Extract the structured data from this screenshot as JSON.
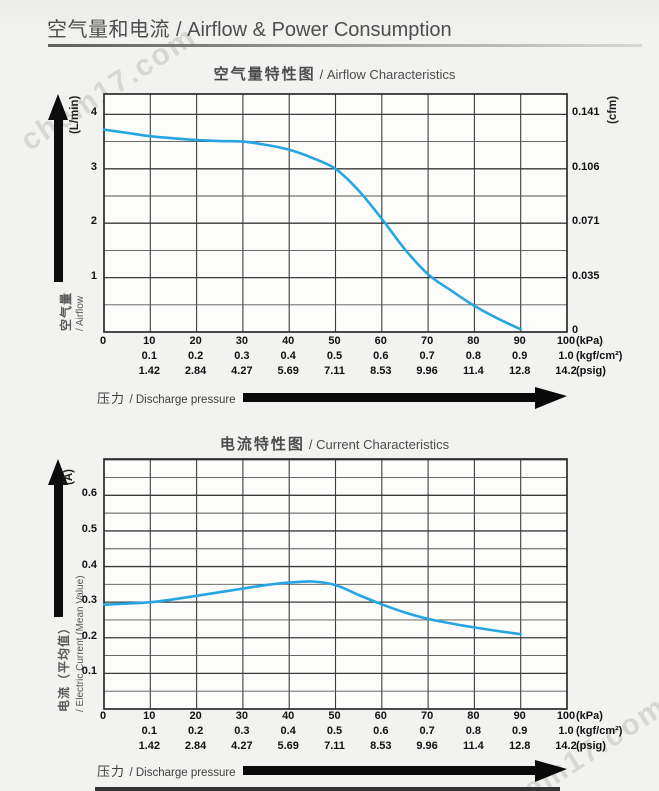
{
  "header": {
    "title_zh": "空气量和电流",
    "title_en": "/ Airflow & Power Consumption",
    "watermark": "chem17.com"
  },
  "pressure_axis": {
    "label_zh": "压力",
    "label_en": "/ Discharge pressure",
    "xlim": [
      0,
      100
    ],
    "rows": [
      {
        "unit": "(kPa)",
        "ticks": [
          {
            "x": 0,
            "label": "0"
          },
          {
            "x": 10,
            "label": "10"
          },
          {
            "x": 20,
            "label": "20"
          },
          {
            "x": 30,
            "label": "30"
          },
          {
            "x": 40,
            "label": "40"
          },
          {
            "x": 50,
            "label": "50"
          },
          {
            "x": 60,
            "label": "60"
          },
          {
            "x": 70,
            "label": "70"
          },
          {
            "x": 80,
            "label": "80"
          },
          {
            "x": 90,
            "label": "90"
          },
          {
            "x": 100,
            "label": "100"
          }
        ]
      },
      {
        "unit": "(kgf/cm²)",
        "ticks": [
          {
            "x": 10,
            "label": "0.1"
          },
          {
            "x": 20,
            "label": "0.2"
          },
          {
            "x": 30,
            "label": "0.3"
          },
          {
            "x": 40,
            "label": "0.4"
          },
          {
            "x": 50,
            "label": "0.5"
          },
          {
            "x": 60,
            "label": "0.6"
          },
          {
            "x": 70,
            "label": "0.7"
          },
          {
            "x": 80,
            "label": "0.8"
          },
          {
            "x": 90,
            "label": "0.9"
          },
          {
            "x": 100,
            "label": "1.0"
          }
        ]
      },
      {
        "unit": "(psig)",
        "ticks": [
          {
            "x": 10,
            "label": "1.42"
          },
          {
            "x": 20,
            "label": "2.84"
          },
          {
            "x": 30,
            "label": "4.27"
          },
          {
            "x": 40,
            "label": "5.69"
          },
          {
            "x": 50,
            "label": "7.11"
          },
          {
            "x": 60,
            "label": "8.53"
          },
          {
            "x": 70,
            "label": "9.96"
          },
          {
            "x": 80,
            "label": "11.4"
          },
          {
            "x": 90,
            "label": "12.8"
          },
          {
            "x": 100,
            "label": "14.2"
          }
        ]
      }
    ]
  },
  "chart_data": [
    {
      "type": "line",
      "title_zh": "空气量特性图",
      "title_en": "/ Airflow Characteristics",
      "xlabel_zh": "压力",
      "xlabel_en": "Discharge pressure",
      "xlim": [
        0,
        100
      ],
      "ylim": [
        0,
        4.375
      ],
      "grid": {
        "minor": 0.5,
        "major": 1
      },
      "y_left": {
        "unit": "(L/min)",
        "ticks": [
          {
            "value": 4,
            "label": "4"
          },
          {
            "value": 3,
            "label": "3"
          },
          {
            "value": 2,
            "label": "2"
          },
          {
            "value": 1,
            "label": "1"
          }
        ]
      },
      "y_right": {
        "unit": "(cfm)",
        "ticks": [
          {
            "value": 4,
            "label": "0.141"
          },
          {
            "value": 3,
            "label": "0.106"
          },
          {
            "value": 2,
            "label": "0.071"
          },
          {
            "value": 1,
            "label": "0.035"
          },
          {
            "value": 0,
            "label": "0"
          }
        ]
      },
      "axis_arrow_zh": "空气量",
      "axis_arrow_en": "/ Airflow",
      "series": [
        {
          "name": "airflow",
          "color": "#25a5e2",
          "points": [
            [
              0,
              3.72
            ],
            [
              5,
              3.66
            ],
            [
              10,
              3.6
            ],
            [
              15,
              3.56
            ],
            [
              20,
              3.53
            ],
            [
              25,
              3.51
            ],
            [
              30,
              3.5
            ],
            [
              35,
              3.44
            ],
            [
              40,
              3.35
            ],
            [
              45,
              3.2
            ],
            [
              50,
              3.0
            ],
            [
              55,
              2.6
            ],
            [
              60,
              2.08
            ],
            [
              65,
              1.52
            ],
            [
              70,
              1.06
            ],
            [
              75,
              0.76
            ],
            [
              80,
              0.48
            ],
            [
              85,
              0.25
            ],
            [
              90,
              0.05
            ]
          ]
        }
      ]
    },
    {
      "type": "line",
      "title_zh": "电流特性图",
      "title_en": "/ Current Characteristics",
      "xlabel_zh": "压力",
      "xlabel_en": "Discharge pressure",
      "xlim": [
        0,
        100
      ],
      "ylim": [
        0,
        0.702
      ],
      "grid": {
        "minor": 0.05,
        "major": 0.1
      },
      "y_left": {
        "unit": "(A)",
        "ticks": [
          {
            "value": 0.6,
            "label": "0.6"
          },
          {
            "value": 0.5,
            "label": "0.5"
          },
          {
            "value": 0.4,
            "label": "0.4"
          },
          {
            "value": 0.3,
            "label": "0.3"
          },
          {
            "value": 0.2,
            "label": "0.2"
          },
          {
            "value": 0.1,
            "label": "0.1"
          }
        ]
      },
      "y_right": {
        "unit": "",
        "ticks": []
      },
      "axis_arrow_zh": "电流（平均值）",
      "axis_arrow_en": "/ Electric Current (Mean Value)",
      "series": [
        {
          "name": "current",
          "color": "#25a5e2",
          "points": [
            [
              0,
              0.293
            ],
            [
              5,
              0.296
            ],
            [
              10,
              0.3
            ],
            [
              15,
              0.308
            ],
            [
              20,
              0.318
            ],
            [
              25,
              0.328
            ],
            [
              30,
              0.338
            ],
            [
              35,
              0.348
            ],
            [
              40,
              0.355
            ],
            [
              45,
              0.358
            ],
            [
              50,
              0.348
            ],
            [
              55,
              0.32
            ],
            [
              60,
              0.294
            ],
            [
              65,
              0.271
            ],
            [
              70,
              0.253
            ],
            [
              75,
              0.24
            ],
            [
              80,
              0.229
            ],
            [
              85,
              0.219
            ],
            [
              90,
              0.21
            ]
          ]
        }
      ]
    }
  ]
}
